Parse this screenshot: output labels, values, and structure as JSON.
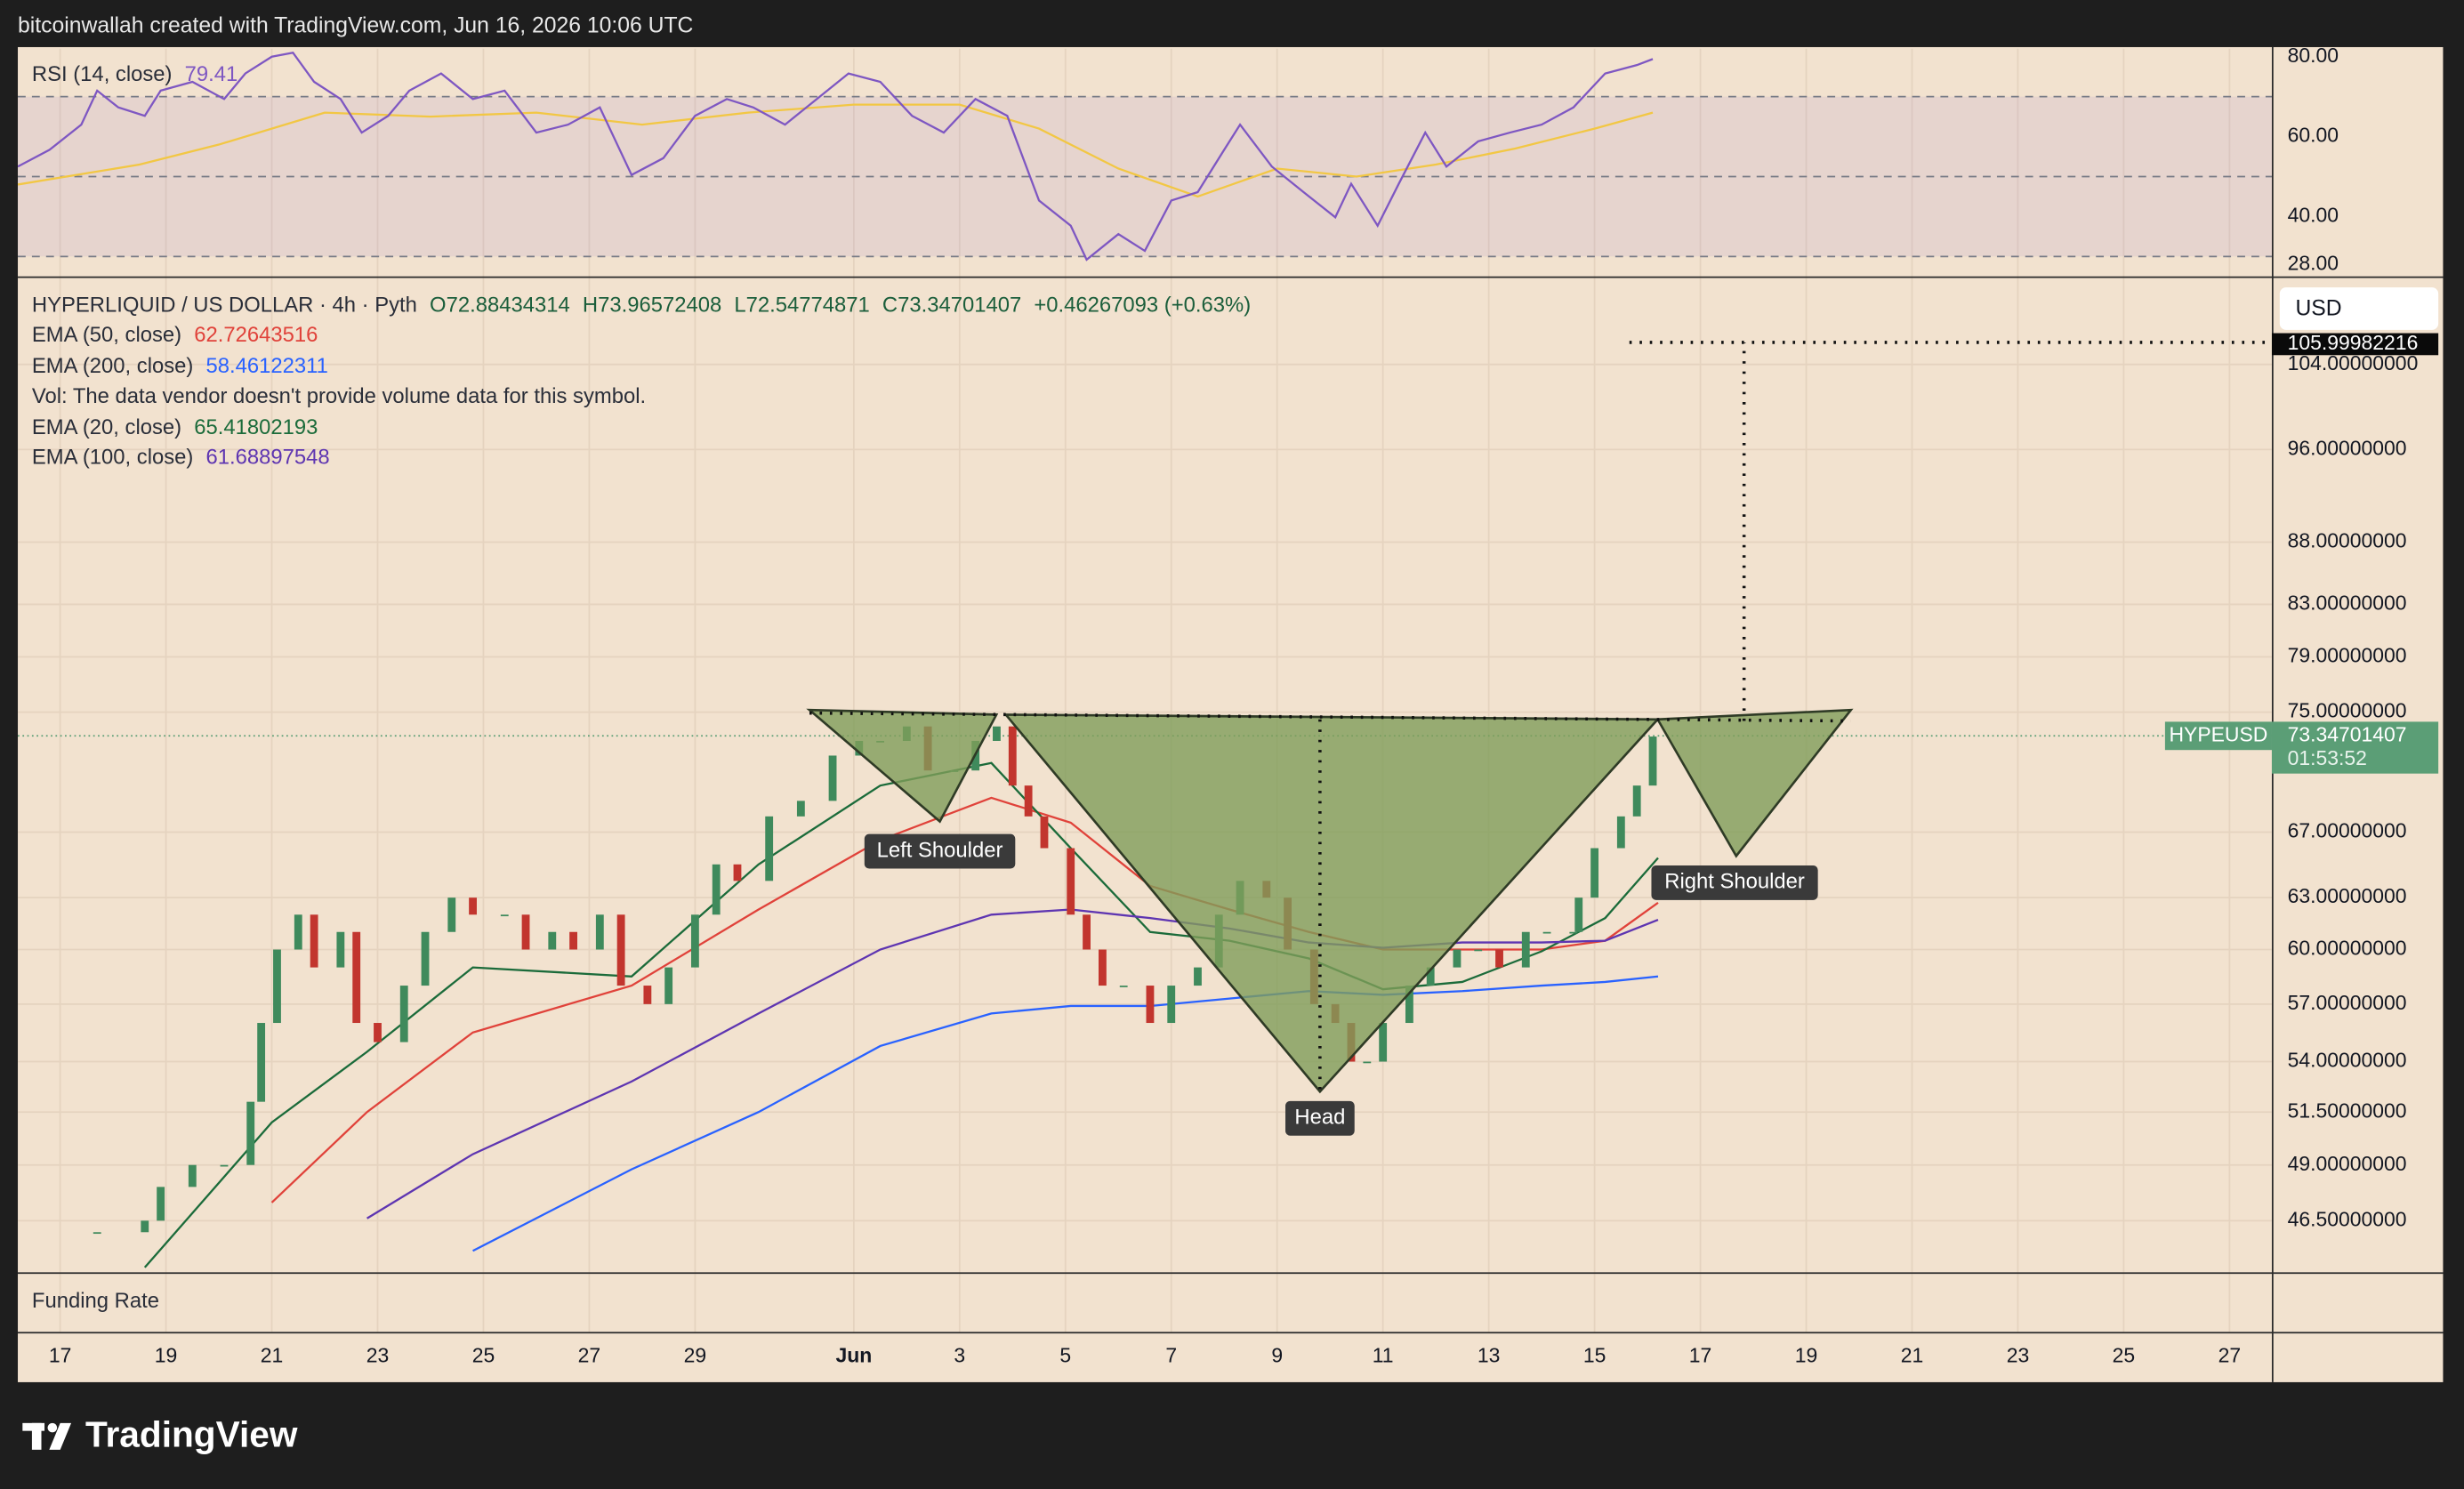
{
  "header": {
    "text": "bitcoinwallah created with TradingView.com, Jun 16, 2026 10:06 UTC"
  },
  "chart_data": {
    "type": "candlestick",
    "symbol": "HYPERLIQUID / US DOLLAR · 4h · Pyth",
    "ohlc": [
      "O72.88434314",
      "H73.96572408",
      "L72.54774871",
      "C73.34701407",
      "+0.46267093 (+0.63%)"
    ],
    "volume_note": "Vol: The data vendor doesn't provide volume data for this symbol.",
    "currency": "USD",
    "ticker": "HYPEUSD",
    "last_price": 73.34701407,
    "countdown": "01:53:52",
    "target_price": 105.99982216,
    "xlim": [
      -0.8,
      41.8
    ],
    "xticks": [
      {
        "value": 0,
        "label": "17"
      },
      {
        "value": 2,
        "label": "19"
      },
      {
        "value": 4,
        "label": "21"
      },
      {
        "value": 6,
        "label": "23"
      },
      {
        "value": 8,
        "label": "25"
      },
      {
        "value": 10,
        "label": "27"
      },
      {
        "value": 12,
        "label": "29"
      },
      {
        "value": 15,
        "label": "Jun"
      },
      {
        "value": 17,
        "label": "3"
      },
      {
        "value": 19,
        "label": "5"
      },
      {
        "value": 21,
        "label": "7"
      },
      {
        "value": 23,
        "label": "9"
      },
      {
        "value": 25,
        "label": "11"
      },
      {
        "value": 27,
        "label": "13"
      },
      {
        "value": 29,
        "label": "15"
      },
      {
        "value": 31,
        "label": "17"
      },
      {
        "value": 33,
        "label": "19"
      },
      {
        "value": 35,
        "label": "21"
      },
      {
        "value": 37,
        "label": "23"
      },
      {
        "value": 39,
        "label": "25"
      },
      {
        "value": 41,
        "label": "27"
      }
    ],
    "ylim": [
      44.3,
      112.8
    ],
    "log_scale": true,
    "yticks": [
      {
        "value": 104,
        "label": "104.00000000"
      },
      {
        "value": 96,
        "label": "96.00000000"
      },
      {
        "value": 88,
        "label": "88.00000000"
      },
      {
        "value": 83,
        "label": "83.00000000"
      },
      {
        "value": 79,
        "label": "79.00000000"
      },
      {
        "value": 75,
        "label": "75.00000000"
      },
      {
        "value": 67,
        "label": "67.00000000"
      },
      {
        "value": 63,
        "label": "63.00000000"
      },
      {
        "value": 60,
        "label": "60.00000000"
      },
      {
        "value": 57,
        "label": "57.00000000"
      },
      {
        "value": 54,
        "label": "54.00000000"
      },
      {
        "value": 51.5,
        "label": "51.50000000"
      },
      {
        "value": 49,
        "label": "49.00000000"
      },
      {
        "value": 46.5,
        "label": "46.50000000"
      }
    ],
    "grid": true,
    "up_color": "#3f8a5c",
    "down_color": "#c2352e",
    "x": [
      0.7,
      1.6,
      1.9,
      2.5,
      3.1,
      3.6,
      3.8,
      4.1,
      4.5,
      4.8,
      5.3,
      5.6,
      6.0,
      6.5,
      6.9,
      7.4,
      7.8,
      8.4,
      8.8,
      9.3,
      9.7,
      10.2,
      10.6,
      11.1,
      11.5,
      12.0,
      12.4,
      12.8,
      13.4,
      14.0,
      14.6,
      15.1,
      15.5,
      16.0,
      16.4,
      16.9,
      17.3,
      17.7,
      18.0,
      18.3,
      18.6,
      19.1,
      19.4,
      19.7,
      20.1,
      20.6,
      21.0,
      21.5,
      21.9,
      22.3,
      22.8,
      23.2,
      23.7,
      24.1,
      24.4,
      24.7,
      25.0,
      25.5,
      25.9,
      26.4,
      26.8,
      27.2,
      27.7,
      28.1,
      28.6,
      28.7,
      29.0,
      29.5,
      29.8,
      30.1
    ],
    "values": [
      46,
      46.5,
      48,
      49,
      49,
      52,
      56,
      60,
      62,
      59,
      61,
      56,
      55,
      58,
      61,
      63,
      62,
      62,
      60,
      61,
      60,
      62,
      58,
      57,
      59,
      62,
      65,
      64,
      68,
      69,
      72,
      73,
      73,
      74,
      71,
      71,
      73,
      74,
      70,
      68,
      66,
      62,
      60,
      58,
      58,
      56,
      58,
      59,
      62,
      64,
      63,
      60,
      57,
      56,
      54,
      54,
      56,
      58,
      59,
      60,
      60,
      59,
      61,
      61,
      61,
      63,
      66,
      68,
      70,
      73.3
    ],
    "ema": {
      "x": [
        1.6,
        4.0,
        5.8,
        7.8,
        10.8,
        13.2,
        15.5,
        17.6,
        19.1,
        20.6,
        22.1,
        23.6,
        25.0,
        26.5,
        28.0,
        29.2,
        30.2
      ],
      "series": [
        {
          "name": "EMA (50, close)",
          "color": "#e0423a",
          "legend_value": 62.72643516,
          "values": [
            null,
            47.3,
            51.5,
            55.5,
            58,
            62.3,
            66.5,
            69.2,
            67.6,
            63.7,
            62.3,
            61,
            60,
            60,
            60,
            60.5,
            62.7
          ]
        },
        {
          "name": "EMA (200, close)",
          "color": "#2962ff",
          "legend_value": 58.46122311,
          "values": [
            null,
            null,
            null,
            45.2,
            48.8,
            51.5,
            54.8,
            56.5,
            56.9,
            56.9,
            57.3,
            57.7,
            57.5,
            57.7,
            58,
            58.2,
            58.5
          ]
        },
        {
          "name": "EMA (20, close)",
          "color": "#1b6b3a",
          "legend_value": 65.41802193,
          "values": [
            44.5,
            51,
            54.5,
            59,
            58.5,
            65,
            70,
            71.5,
            66,
            61,
            60.5,
            59.5,
            57.8,
            58.2,
            59.9,
            61.8,
            65.4
          ]
        },
        {
          "name": "EMA (100, close)",
          "color": "#5e35b1",
          "legend_value": 61.68897548,
          "values": [
            null,
            null,
            46.6,
            49.5,
            53,
            56.5,
            60,
            62,
            62.3,
            61.8,
            61.2,
            60.4,
            60.1,
            60.4,
            60.4,
            60.5,
            61.7
          ]
        }
      ]
    },
    "annotations": [
      "Left Shoulder",
      "Head",
      "Right Shoulder"
    ],
    "rsi": {
      "title": "RSI (14, close)",
      "ylim": [
        25,
        82
      ],
      "yticks": [
        {
          "value": 80,
          "label": "80.00"
        },
        {
          "value": 60,
          "label": "60.00"
        },
        {
          "value": 40,
          "label": "40.00"
        },
        {
          "value": 28,
          "label": "28.00"
        }
      ],
      "levels": [
        70,
        50,
        30
      ],
      "color": "#7e57c2",
      "ma_color": "#f2c744",
      "x": [
        -0.8,
        -0.2,
        0.4,
        0.7,
        1.1,
        1.6,
        1.9,
        2.5,
        3.1,
        3.5,
        4.0,
        4.4,
        4.8,
        5.3,
        5.7,
        6.2,
        6.6,
        7.2,
        7.8,
        8.4,
        9.0,
        9.6,
        10.2,
        10.8,
        11.4,
        12.0,
        12.6,
        13.1,
        13.7,
        14.3,
        14.9,
        15.5,
        16.1,
        16.7,
        17.3,
        17.9,
        18.5,
        19.1,
        19.4,
        20.0,
        20.5,
        21.0,
        21.5,
        22.0,
        22.3,
        22.9,
        23.5,
        24.1,
        24.4,
        24.9,
        25.3,
        25.8,
        26.2,
        26.8,
        27.4,
        28.0,
        28.6,
        29.2,
        29.8,
        30.1
      ],
      "values": [
        52.5,
        56.7,
        63,
        71.5,
        67.3,
        65.2,
        71.5,
        73.7,
        69.4,
        75.8,
        80,
        81,
        73.7,
        69.4,
        61,
        65.2,
        71.5,
        75.8,
        69.4,
        71.5,
        61,
        63,
        67.3,
        50.4,
        54.6,
        65.2,
        69.4,
        67.3,
        63,
        69.4,
        75.8,
        73.7,
        65.2,
        61,
        69.4,
        65.2,
        44,
        37.7,
        29.2,
        35.6,
        31.4,
        44,
        46.1,
        56.7,
        63,
        52.5,
        46.1,
        39.8,
        48.2,
        37.7,
        48.2,
        61,
        52.5,
        58.8,
        61,
        63,
        67.3,
        75.8,
        77.9,
        79.41
      ],
      "ma_x": [
        -0.8,
        1.5,
        3,
        5,
        7,
        9,
        11,
        13,
        15,
        17,
        18.5,
        20,
        21.5,
        23,
        24.5,
        26,
        27.5,
        29,
        30.1
      ],
      "ma_values": [
        48,
        53,
        58,
        66,
        65,
        66,
        63,
        66,
        68,
        68,
        62,
        52,
        45,
        52,
        50,
        53,
        57,
        62,
        66
      ]
    },
    "funding_label": "Funding Rate"
  },
  "footer": {
    "brand": "TradingView"
  }
}
